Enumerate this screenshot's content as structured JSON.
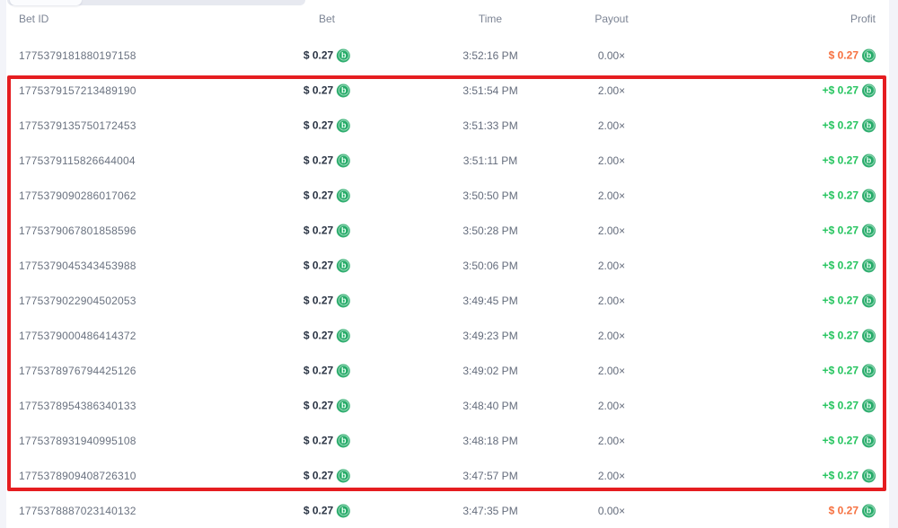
{
  "colors": {
    "page_bg": "#f3f4f9",
    "highlight_border": "#e51d20",
    "win_text": "#24c45e",
    "loss_text": "#f6703f",
    "coin_bg": "#26ab69"
  },
  "currency_icon": {
    "name": "coin-icon",
    "glyph": "b"
  },
  "highlight": {
    "first_row_index": 1,
    "last_row_index": 12
  },
  "table": {
    "columns": [
      {
        "label": "Bet ID"
      },
      {
        "label": "Bet"
      },
      {
        "label": "Time"
      },
      {
        "label": "Payout"
      },
      {
        "label": "Profit"
      }
    ],
    "rows": [
      {
        "id": "1775379181880197158",
        "bet": "$ 0.27",
        "time": "3:52:16 PM",
        "payout": "0.00×",
        "profit": "$ 0.27",
        "outcome": "loss"
      },
      {
        "id": "1775379157213489190",
        "bet": "$ 0.27",
        "time": "3:51:54 PM",
        "payout": "2.00×",
        "profit": "+$ 0.27",
        "outcome": "win"
      },
      {
        "id": "1775379135750172453",
        "bet": "$ 0.27",
        "time": "3:51:33 PM",
        "payout": "2.00×",
        "profit": "+$ 0.27",
        "outcome": "win"
      },
      {
        "id": "1775379115826644004",
        "bet": "$ 0.27",
        "time": "3:51:11 PM",
        "payout": "2.00×",
        "profit": "+$ 0.27",
        "outcome": "win"
      },
      {
        "id": "1775379090286017062",
        "bet": "$ 0.27",
        "time": "3:50:50 PM",
        "payout": "2.00×",
        "profit": "+$ 0.27",
        "outcome": "win"
      },
      {
        "id": "1775379067801858596",
        "bet": "$ 0.27",
        "time": "3:50:28 PM",
        "payout": "2.00×",
        "profit": "+$ 0.27",
        "outcome": "win"
      },
      {
        "id": "1775379045343453988",
        "bet": "$ 0.27",
        "time": "3:50:06 PM",
        "payout": "2.00×",
        "profit": "+$ 0.27",
        "outcome": "win"
      },
      {
        "id": "1775379022904502053",
        "bet": "$ 0.27",
        "time": "3:49:45 PM",
        "payout": "2.00×",
        "profit": "+$ 0.27",
        "outcome": "win"
      },
      {
        "id": "1775379000486414372",
        "bet": "$ 0.27",
        "time": "3:49:23 PM",
        "payout": "2.00×",
        "profit": "+$ 0.27",
        "outcome": "win"
      },
      {
        "id": "1775378976794425126",
        "bet": "$ 0.27",
        "time": "3:49:02 PM",
        "payout": "2.00×",
        "profit": "+$ 0.27",
        "outcome": "win"
      },
      {
        "id": "1775378954386340133",
        "bet": "$ 0.27",
        "time": "3:48:40 PM",
        "payout": "2.00×",
        "profit": "+$ 0.27",
        "outcome": "win"
      },
      {
        "id": "1775378931940995108",
        "bet": "$ 0.27",
        "time": "3:48:18 PM",
        "payout": "2.00×",
        "profit": "+$ 0.27",
        "outcome": "win"
      },
      {
        "id": "1775378909408726310",
        "bet": "$ 0.27",
        "time": "3:47:57 PM",
        "payout": "2.00×",
        "profit": "+$ 0.27",
        "outcome": "win"
      },
      {
        "id": "1775378887023140132",
        "bet": "$ 0.27",
        "time": "3:47:35 PM",
        "payout": "0.00×",
        "profit": "$ 0.27",
        "outcome": "loss"
      }
    ]
  }
}
